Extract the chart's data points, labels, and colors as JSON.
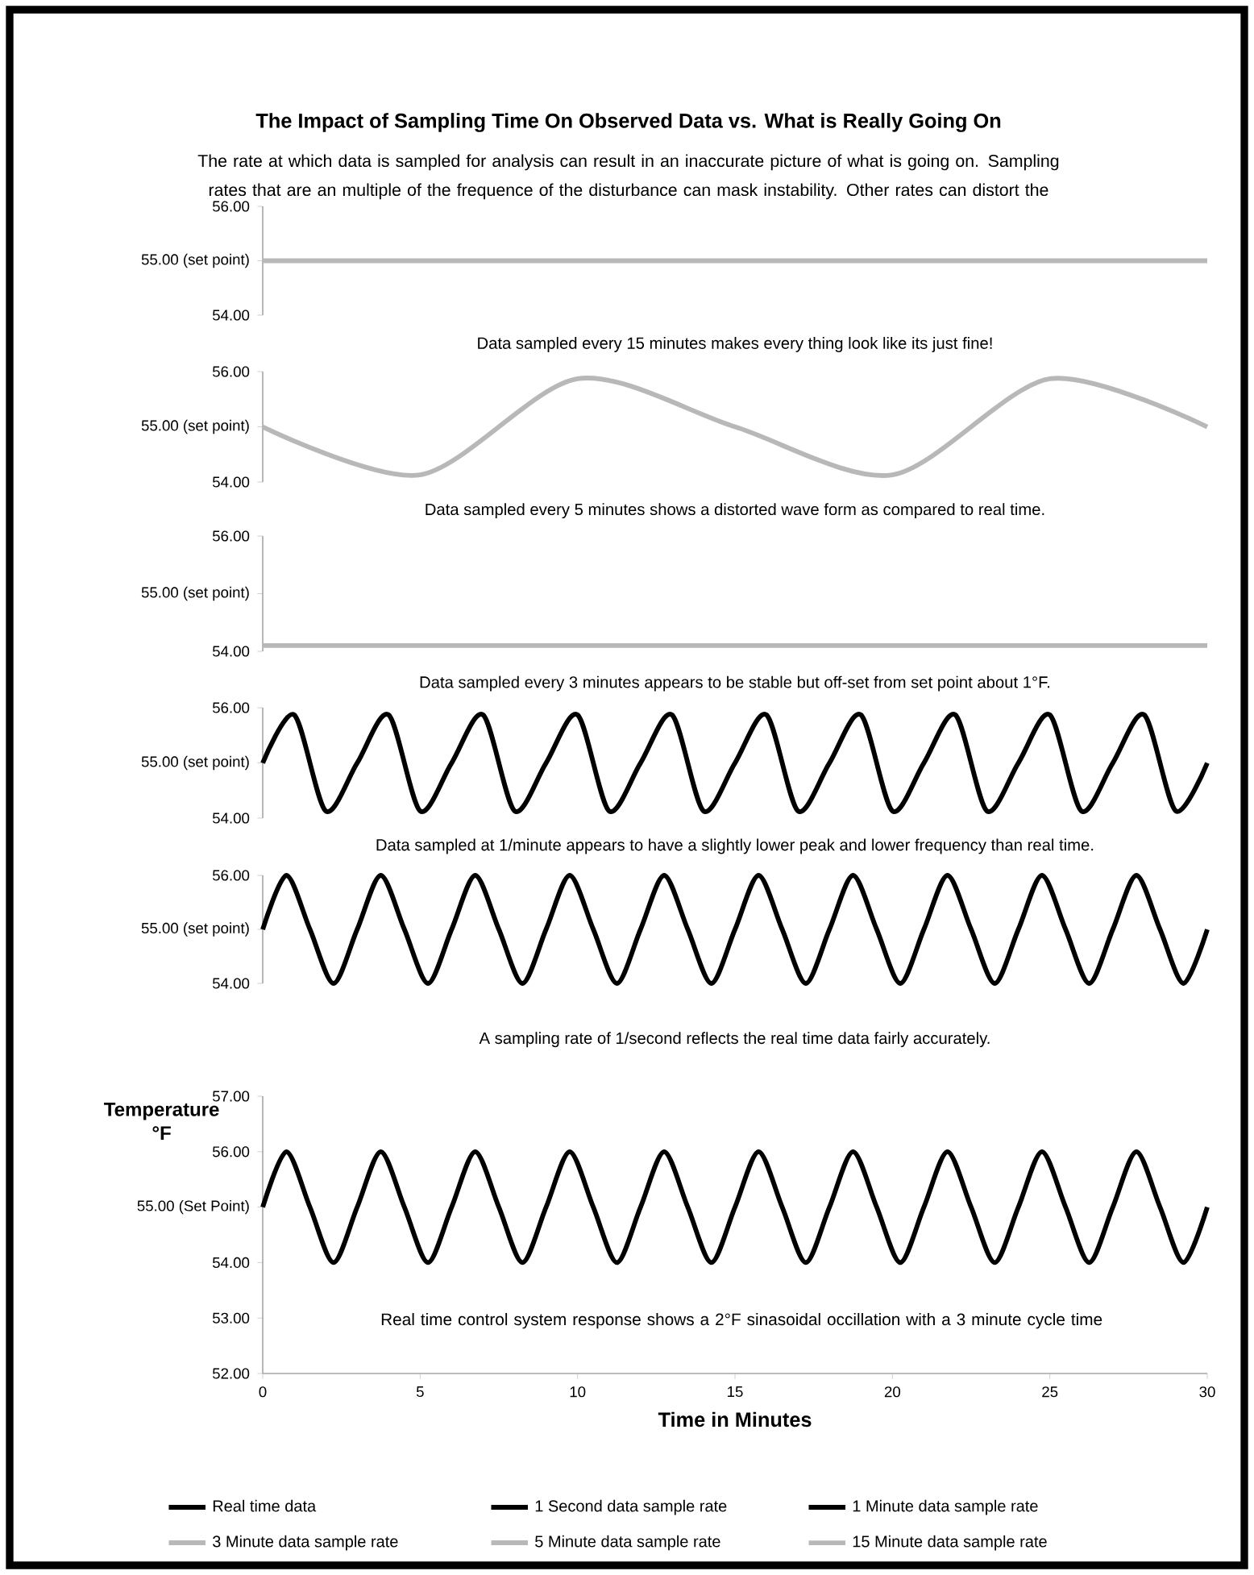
{
  "chart_data": [
    {
      "type": "line",
      "title": "The Impact of Sampling Time On Observed Data vs. What is Really Going On",
      "subtitle": "The rate at which data is sampled for analysis can result in an inaccurate picture of what is going on.  Sampling rates that are an  multiple of the frequence of the disturbance can mask instability.  Other  rates can distort the",
      "annotations": [
        "Data sampled every 15 minutes makes every thing look like its just fine!"
      ],
      "xlim": [
        0,
        30
      ],
      "ylim": [
        54,
        56
      ],
      "yticks": [
        {
          "value": 54,
          "label": "54.00"
        },
        {
          "value": 55,
          "label": "55.00 (set point)"
        },
        {
          "value": 56,
          "label": "56.00"
        }
      ],
      "tick_labels": "y",
      "legend": "bottom",
      "series": [
        {
          "name": "15 Minute data sample rate",
          "color": "#b8b8b8",
          "x": [
            0,
            15,
            30
          ],
          "values": [
            55,
            55,
            55
          ]
        }
      ]
    },
    {
      "type": "line",
      "annotations": [
        "Data sampled every 5 minutes shows a distorted wave form as compared to real time."
      ],
      "xlim": [
        0,
        30
      ],
      "ylim": [
        54,
        56
      ],
      "yticks": [
        {
          "value": 54,
          "label": "54.00"
        },
        {
          "value": 55,
          "label": "55.00 (set point)"
        },
        {
          "value": 56,
          "label": "56.00"
        }
      ],
      "tick_labels": "y",
      "legend": "bottom",
      "series": [
        {
          "name": "5 Minute data sample rate",
          "color": "#b8b8b8",
          "x": [
            0,
            5,
            10,
            15,
            20,
            25,
            30
          ],
          "values": [
            55,
            54.13,
            55.87,
            55,
            54.13,
            55.87,
            55
          ]
        }
      ]
    },
    {
      "type": "line",
      "annotations": [
        "Data sampled every 3 minutes appears to be stable but off-set from set point about 1°F."
      ],
      "xlim": [
        0,
        30
      ],
      "ylim": [
        54,
        56
      ],
      "yticks": [
        {
          "value": 54,
          "label": "54.00"
        },
        {
          "value": 55,
          "label": "55.00 (set point)"
        },
        {
          "value": 56,
          "label": "56.00"
        }
      ],
      "tick_labels": "y",
      "legend": "bottom",
      "series": [
        {
          "name": "3 Minute data sample rate",
          "color": "#b8b8b8",
          "x": [
            0,
            3,
            6,
            9,
            12,
            15,
            18,
            21,
            24,
            27,
            30
          ],
          "values": [
            54.1,
            54.1,
            54.1,
            54.1,
            54.1,
            54.1,
            54.1,
            54.1,
            54.1,
            54.1,
            54.1
          ]
        }
      ]
    },
    {
      "type": "line",
      "annotations": [
        "Data sampled at 1/minute appears to have a slightly lower peak and lower frequency than real time."
      ],
      "xlim": [
        0,
        30
      ],
      "ylim": [
        54,
        56
      ],
      "yticks": [
        {
          "value": 54,
          "label": "54.00"
        },
        {
          "value": 55,
          "label": "55.00 (set point)"
        },
        {
          "value": 56,
          "label": "56.00"
        }
      ],
      "tick_labels": "y",
      "legend": "bottom",
      "series": [
        {
          "name": "1 Minute data sample rate",
          "color": "#000000",
          "x": [
            0,
            1,
            2,
            3,
            4,
            5,
            6,
            7,
            8,
            9,
            10,
            11,
            12,
            13,
            14,
            15,
            16,
            17,
            18,
            19,
            20,
            21,
            22,
            23,
            24,
            25,
            26,
            27,
            28,
            29,
            30
          ],
          "values": [
            55,
            55.87,
            54.13,
            55,
            55.87,
            54.13,
            55,
            55.87,
            54.13,
            55,
            55.87,
            54.13,
            55,
            55.87,
            54.13,
            55,
            55.87,
            54.13,
            55,
            55.87,
            54.13,
            55,
            55.87,
            54.13,
            55,
            55.87,
            54.13,
            55,
            55.87,
            54.13,
            55
          ]
        }
      ]
    },
    {
      "type": "line",
      "annotations": [
        "A sampling rate of 1/second reflects the real time data fairly accurately."
      ],
      "xlim": [
        0,
        30
      ],
      "ylim": [
        54,
        56
      ],
      "yticks": [
        {
          "value": 54,
          "label": "54.00"
        },
        {
          "value": 55,
          "label": "55.00 (set point)"
        },
        {
          "value": 56,
          "label": "56.00"
        }
      ],
      "tick_labels": "y",
      "legend": "bottom",
      "series": [
        {
          "name": "1 Second data sample rate",
          "color": "#000000",
          "x": [
            0,
            0.75,
            1.5,
            2.25,
            3,
            3.75,
            4.5,
            5.25,
            6,
            6.75,
            7.5,
            8.25,
            9,
            9.75,
            10.5,
            11.25,
            12,
            12.75,
            13.5,
            14.25,
            15,
            15.75,
            16.5,
            17.25,
            18,
            18.75,
            19.5,
            20.25,
            21,
            21.75,
            22.5,
            23.25,
            24,
            24.75,
            25.5,
            26.25,
            27,
            27.75,
            28.5,
            29.25,
            30
          ],
          "values": [
            55,
            56,
            55,
            54,
            55,
            56,
            55,
            54,
            55,
            56,
            55,
            54,
            55,
            56,
            55,
            54,
            55,
            56,
            55,
            54,
            55,
            56,
            55,
            54,
            55,
            56,
            55,
            54,
            55,
            56,
            55,
            54,
            55,
            56,
            55,
            54,
            55,
            56,
            55,
            54,
            55
          ]
        }
      ]
    },
    {
      "type": "line",
      "annotations": [
        "Real time control system response shows a 2°F sinasoidal occillation with a 3 minute cycle time"
      ],
      "xlabel": "Time in Minutes",
      "ylabel": "Temperature °F",
      "xlim": [
        0,
        30
      ],
      "ylim": [
        52,
        57
      ],
      "xticks": [
        0,
        5,
        10,
        15,
        20,
        25,
        30
      ],
      "yticks": [
        {
          "value": 52,
          "label": "52.00"
        },
        {
          "value": 53,
          "label": "53.00"
        },
        {
          "value": 54,
          "label": "54.00"
        },
        {
          "value": 55,
          "label": "55.00 (Set Point)"
        },
        {
          "value": 56,
          "label": "56.00"
        },
        {
          "value": 57,
          "label": "57.00"
        }
      ],
      "legend": "bottom",
      "series": [
        {
          "name": "Real time data",
          "color": "#000000",
          "x": [
            0,
            0.75,
            1.5,
            2.25,
            3,
            3.75,
            4.5,
            5.25,
            6,
            6.75,
            7.5,
            8.25,
            9,
            9.75,
            10.5,
            11.25,
            12,
            12.75,
            13.5,
            14.25,
            15,
            15.75,
            16.5,
            17.25,
            18,
            18.75,
            19.5,
            20.25,
            21,
            21.75,
            22.5,
            23.25,
            24,
            24.75,
            25.5,
            26.25,
            27,
            27.75,
            28.5,
            29.25,
            30
          ],
          "values": [
            55,
            56,
            55,
            54,
            55,
            56,
            55,
            54,
            55,
            56,
            55,
            54,
            55,
            56,
            55,
            54,
            55,
            56,
            55,
            54,
            55,
            56,
            55,
            54,
            55,
            56,
            55,
            54,
            55,
            56,
            55,
            54,
            55,
            56,
            55,
            54,
            55,
            56,
            55,
            54,
            55
          ]
        }
      ]
    }
  ]
}
